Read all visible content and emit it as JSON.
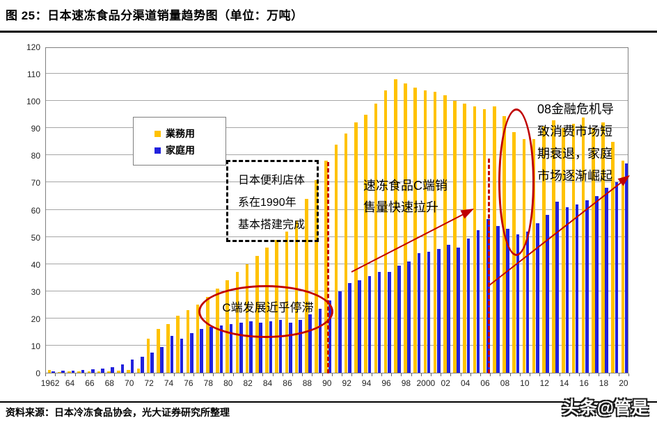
{
  "title": "图 25：日本速冻食品分渠道销量趋势图（单位：万吨）",
  "source": "资料来源：日本冷冻食品协会，光大证券研究所整理",
  "watermark": "头条@管是",
  "legend": {
    "business": "業務用",
    "household": "家庭用"
  },
  "annotations": {
    "box_line1": "日本便利店体",
    "box_line2": "系在1990年",
    "box_line3": "基本搭建完成",
    "ellipse_label": "C端发展近乎停滞",
    "mid_line1": "速冻食品C端销",
    "mid_line2": "售量快速拉升",
    "right_line1": "08金融危机导",
    "right_line2": "致消费市场短",
    "right_line3": "期衰退，家庭",
    "right_line4": "市场逐渐崛起"
  },
  "colors": {
    "business": "#FFC200",
    "household": "#2222DD",
    "annotation_red": "#C00000",
    "gridline": "#A6A6A6"
  },
  "chart_data": {
    "type": "bar",
    "title": "日本速冻食品分渠道销量趋势图（单位：万吨）",
    "xlabel": "",
    "ylabel": "万吨",
    "ylim": [
      0,
      120
    ],
    "ytick_step": 10,
    "grid": true,
    "legend_position": "upper-left-inside",
    "year_start": 1962,
    "year_end": 2020,
    "xtick_labels": [
      "1962",
      "64",
      "66",
      "68",
      "70",
      "72",
      "74",
      "76",
      "78",
      "80",
      "82",
      "84",
      "86",
      "88",
      "90",
      "92",
      "94",
      "96",
      "98",
      "2000",
      "02",
      "04",
      "06",
      "08",
      "10",
      "12",
      "14",
      "16",
      "18",
      "20"
    ],
    "series": [
      {
        "name": "業務用",
        "color": "#FFC200",
        "values": [
          1,
          0.3,
          0.4,
          0.4,
          0.5,
          0.5,
          0.6,
          0.8,
          1,
          1.5,
          12.5,
          16,
          18,
          21,
          23,
          25,
          28,
          31,
          34,
          37,
          40,
          43,
          46,
          49,
          52,
          56,
          64,
          71,
          78,
          84,
          88,
          92,
          95,
          99,
          104,
          108,
          106.5,
          105,
          104,
          103.5,
          102,
          100,
          99,
          98,
          97,
          98,
          94.5,
          88.5,
          86,
          86,
          90.5,
          93,
          90,
          91.5,
          94,
          90,
          92,
          85,
          78
        ]
      },
      {
        "name": "家庭用",
        "color": "#2222DD",
        "values": [
          0.5,
          0.7,
          0.8,
          1,
          1.2,
          1.5,
          2,
          3,
          4.8,
          6,
          7.5,
          9.5,
          13.5,
          12.5,
          14.5,
          16,
          17,
          17.5,
          18,
          18.5,
          19,
          18.5,
          19,
          19.5,
          18.5,
          19.5,
          21.5,
          23.5,
          26.5,
          30,
          33,
          34,
          35.5,
          37,
          37,
          39.5,
          41,
          44,
          44.5,
          45.5,
          47,
          46,
          49.5,
          52.5,
          56.5,
          54,
          53,
          51,
          52,
          55,
          58,
          63,
          61,
          62,
          63.5,
          65,
          68,
          70,
          77
        ]
      }
    ]
  }
}
